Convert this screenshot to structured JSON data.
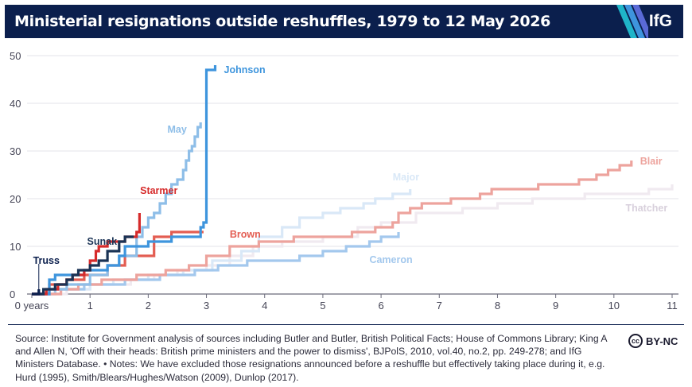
{
  "header": {
    "title": "Ministerial resignations outside reshuffles, 1979 to 12 May 2026",
    "logo": "IfG"
  },
  "footer": {
    "source": "Source: Institute for Government analysis of sources including Butler and Butler, British Political Facts; House of Commons Library; King A and Allen N, 'Off with their heads: British prime ministers and the power to dismiss', BJPolS, 2010, vol.40, no.2, pp. 249-278; and IfG Ministers Database. • Notes: We have excluded those resignations announced before a reshuffle but effectively taking place during it, e.g. Hurd (1995), Smith/Blears/Hughes/Watson (2009), Dunlop (2017).",
    "license": "BY-NC",
    "license_icon": "cc-icon"
  },
  "chart_data": {
    "type": "line",
    "title": "Ministerial resignations outside reshuffles, 1979 to 12 May 2026",
    "xlabel": "",
    "ylabel": "",
    "xlim": [
      0,
      11
    ],
    "ylim": [
      0,
      50
    ],
    "x_ticks": [
      0,
      1,
      2,
      3,
      4,
      5,
      6,
      7,
      8,
      9,
      10,
      11
    ],
    "x_tick_labels": [
      "0 years",
      "1",
      "2",
      "3",
      "4",
      "5",
      "6",
      "7",
      "8",
      "9",
      "10",
      "11"
    ],
    "y_ticks": [
      0,
      10,
      20,
      30,
      40,
      50
    ],
    "grid": "horizontal",
    "step": true,
    "series": [
      {
        "name": "Thatcher",
        "color": "#f0eaf0",
        "label_at": [
          10.2,
          18
        ],
        "points": [
          [
            0,
            0
          ],
          [
            0.6,
            1
          ],
          [
            1.0,
            2
          ],
          [
            1.4,
            2
          ],
          [
            1.7,
            3
          ],
          [
            2.1,
            4
          ],
          [
            2.5,
            5
          ],
          [
            3.0,
            6
          ],
          [
            3.4,
            8
          ],
          [
            3.8,
            10
          ],
          [
            4.3,
            11
          ],
          [
            5.0,
            12
          ],
          [
            5.6,
            14
          ],
          [
            6.0,
            15
          ],
          [
            6.6,
            17
          ],
          [
            7.4,
            18
          ],
          [
            8.0,
            19
          ],
          [
            8.6,
            20
          ],
          [
            9.5,
            21
          ],
          [
            10.6,
            22
          ],
          [
            11.0,
            23
          ]
        ]
      },
      {
        "name": "Major",
        "color": "#d9e8f7",
        "label_at": [
          6.2,
          24.5
        ],
        "points": [
          [
            0,
            0
          ],
          [
            0.5,
            1
          ],
          [
            1.0,
            2
          ],
          [
            1.4,
            3
          ],
          [
            2.0,
            4
          ],
          [
            2.6,
            5
          ],
          [
            3.1,
            7
          ],
          [
            3.6,
            9
          ],
          [
            3.9,
            12
          ],
          [
            4.3,
            14
          ],
          [
            4.6,
            16
          ],
          [
            5.0,
            17
          ],
          [
            5.3,
            18
          ],
          [
            5.7,
            19
          ],
          [
            5.9,
            20
          ],
          [
            6.2,
            21
          ],
          [
            6.5,
            22
          ]
        ]
      },
      {
        "name": "Cameron",
        "color": "#a3c8ed",
        "label_at": [
          5.8,
          7.2
        ],
        "points": [
          [
            0,
            0
          ],
          [
            0.4,
            1
          ],
          [
            0.9,
            2
          ],
          [
            1.6,
            3
          ],
          [
            2.2,
            4
          ],
          [
            2.8,
            5
          ],
          [
            3.2,
            6
          ],
          [
            3.7,
            7
          ],
          [
            4.2,
            7
          ],
          [
            4.6,
            8
          ],
          [
            5.0,
            9
          ],
          [
            5.4,
            10
          ],
          [
            5.8,
            11
          ],
          [
            6.0,
            12
          ],
          [
            6.3,
            13
          ]
        ]
      },
      {
        "name": "Blair",
        "color": "#eda39d",
        "label_at": [
          10.45,
          27.8
        ],
        "points": [
          [
            0,
            0
          ],
          [
            0.5,
            1
          ],
          [
            0.8,
            2
          ],
          [
            1.2,
            3
          ],
          [
            1.8,
            4
          ],
          [
            2.3,
            5
          ],
          [
            2.7,
            6
          ],
          [
            3.0,
            8
          ],
          [
            3.4,
            10
          ],
          [
            3.9,
            11
          ],
          [
            4.5,
            12
          ],
          [
            5.5,
            13
          ],
          [
            5.9,
            14
          ],
          [
            6.2,
            15
          ],
          [
            6.3,
            17
          ],
          [
            6.5,
            18
          ],
          [
            6.7,
            19
          ],
          [
            7.2,
            20
          ],
          [
            7.7,
            21
          ],
          [
            7.9,
            22
          ],
          [
            8.7,
            23
          ],
          [
            9.4,
            24
          ],
          [
            9.7,
            25
          ],
          [
            9.9,
            26
          ],
          [
            10.1,
            27
          ],
          [
            10.3,
            28
          ]
        ]
      },
      {
        "name": "Brown",
        "color": "#e35d52",
        "label_at": [
          3.4,
          12.5
        ],
        "points": [
          [
            0,
            0
          ],
          [
            0.3,
            2
          ],
          [
            0.6,
            3
          ],
          [
            0.9,
            4
          ],
          [
            1.3,
            6
          ],
          [
            1.6,
            8
          ],
          [
            2.1,
            12
          ],
          [
            2.4,
            13
          ],
          [
            2.95,
            13
          ]
        ]
      },
      {
        "name": "May",
        "color": "#8ebee8",
        "label_at": [
          2.33,
          34.5
        ],
        "points": [
          [
            0,
            0
          ],
          [
            0.3,
            1
          ],
          [
            0.6,
            2
          ],
          [
            1.0,
            4
          ],
          [
            1.3,
            6
          ],
          [
            1.5,
            8
          ],
          [
            1.8,
            12
          ],
          [
            1.9,
            14
          ],
          [
            2.0,
            16
          ],
          [
            2.1,
            17
          ],
          [
            2.2,
            19
          ],
          [
            2.3,
            21
          ],
          [
            2.4,
            23
          ],
          [
            2.5,
            24
          ],
          [
            2.6,
            26
          ],
          [
            2.65,
            28
          ],
          [
            2.7,
            30
          ],
          [
            2.75,
            31
          ],
          [
            2.8,
            33
          ],
          [
            2.85,
            35
          ],
          [
            2.9,
            36
          ]
        ]
      },
      {
        "name": "Johnson",
        "color": "#3e95dd",
        "label_at": [
          3.3,
          47
        ],
        "points": [
          [
            0,
            0
          ],
          [
            0.3,
            3
          ],
          [
            0.4,
            4
          ],
          [
            0.9,
            5
          ],
          [
            1.3,
            6
          ],
          [
            1.5,
            8
          ],
          [
            1.6,
            10
          ],
          [
            2.0,
            11
          ],
          [
            2.4,
            12
          ],
          [
            2.9,
            14
          ],
          [
            2.95,
            15
          ],
          [
            3.0,
            47
          ],
          [
            3.15,
            48
          ]
        ]
      },
      {
        "name": "Starmer",
        "color": "#d62b2b",
        "label_at": [
          1.86,
          21.7
        ],
        "points": [
          [
            0,
            0
          ],
          [
            0.25,
            1
          ],
          [
            0.45,
            2
          ],
          [
            0.6,
            3
          ],
          [
            0.7,
            4
          ],
          [
            0.9,
            5
          ],
          [
            1.0,
            7
          ],
          [
            1.1,
            9
          ],
          [
            1.15,
            10
          ],
          [
            1.3,
            11
          ],
          [
            1.6,
            12
          ],
          [
            1.8,
            13
          ],
          [
            1.85,
            17
          ]
        ]
      },
      {
        "name": "Sunak",
        "color": "#1a3355",
        "label_at": [
          0.95,
          11
        ],
        "points": [
          [
            0,
            0
          ],
          [
            0.2,
            1
          ],
          [
            0.4,
            2
          ],
          [
            0.6,
            3
          ],
          [
            0.7,
            4
          ],
          [
            0.8,
            5
          ],
          [
            1.0,
            6
          ],
          [
            1.15,
            7
          ],
          [
            1.3,
            9
          ],
          [
            1.5,
            11
          ],
          [
            1.6,
            12
          ],
          [
            1.75,
            12
          ]
        ]
      },
      {
        "name": "Truss",
        "color": "#0b1f4d",
        "label_at": [
          0.25,
          7
        ],
        "points": [
          [
            0,
            0
          ],
          [
            0.12,
            1
          ]
        ]
      }
    ]
  }
}
